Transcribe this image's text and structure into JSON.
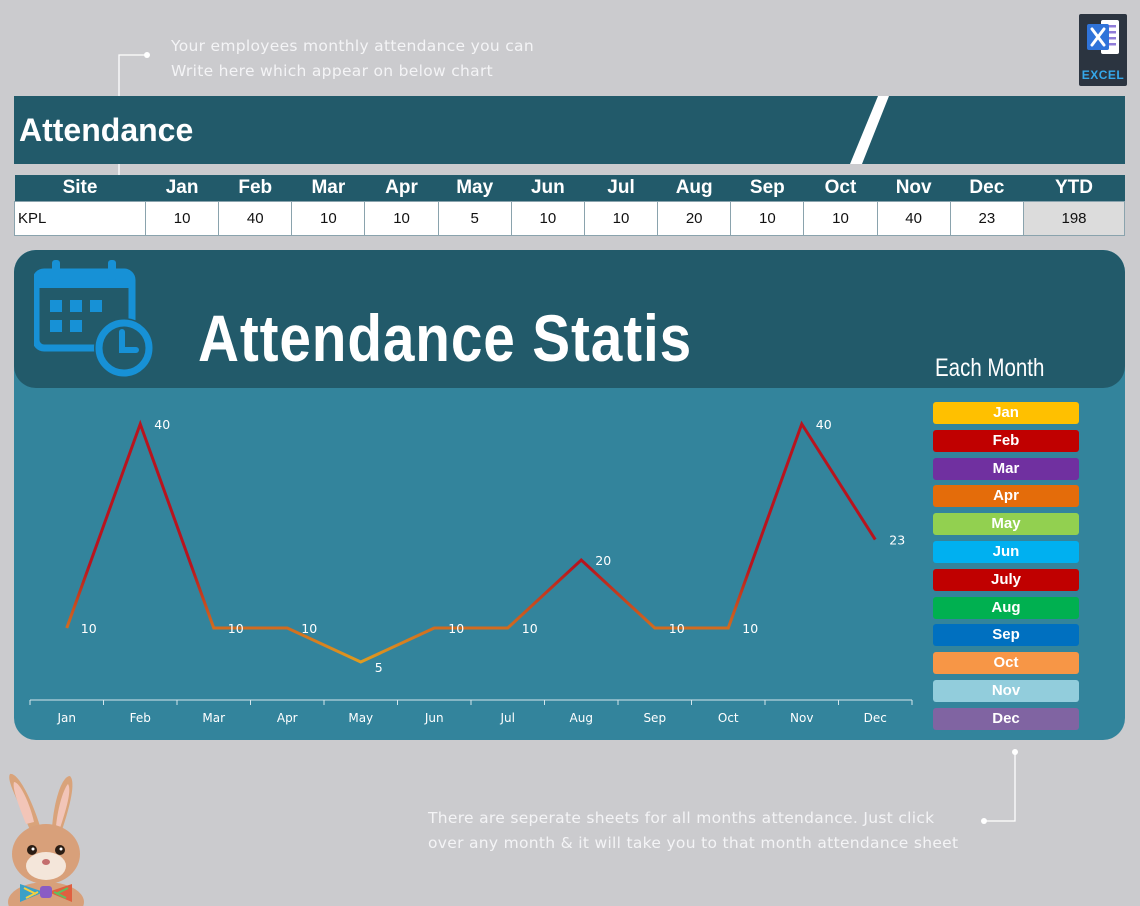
{
  "callouts": {
    "top_line1": "Your employees monthly attendance you can",
    "top_line2": "Write here which appear on below chart",
    "bottom_line1": "There are seperate sheets for all months attendance. Just click",
    "bottom_line2": "over any month & it will take you to that month attendance sheet"
  },
  "badge": {
    "label": "EXCEL",
    "icon": "excel-icon"
  },
  "header": {
    "title": "Attendance"
  },
  "table": {
    "columns": [
      "Site",
      "Jan",
      "Feb",
      "Mar",
      "Apr",
      "May",
      "Jun",
      "Jul",
      "Aug",
      "Sep",
      "Oct",
      "Nov",
      "Dec",
      "YTD"
    ],
    "row": {
      "site": "KPL",
      "values": [
        "10",
        "40",
        "10",
        "10",
        "5",
        "10",
        "10",
        "20",
        "10",
        "10",
        "40",
        "23"
      ],
      "ytd": "198"
    }
  },
  "stats": {
    "title": "Attendance Statis",
    "icon": "calendar-clock-icon",
    "each_month_label": "Each Month"
  },
  "chart_data": {
    "type": "line",
    "categories": [
      "Jan",
      "Feb",
      "Mar",
      "Apr",
      "May",
      "Jun",
      "Jul",
      "Aug",
      "Sep",
      "Oct",
      "Nov",
      "Dec"
    ],
    "values": [
      10,
      40,
      10,
      10,
      5,
      10,
      10,
      20,
      10,
      10,
      40,
      23
    ],
    "ylim": [
      0,
      45
    ],
    "grid": false,
    "data_labels": true,
    "colors": {
      "low": "#e0a020",
      "high": "#b8141e"
    }
  },
  "month_buttons": [
    {
      "label": "Jan",
      "color": "#ffc000"
    },
    {
      "label": "Feb",
      "color": "#c00000"
    },
    {
      "label": "Mar",
      "color": "#7030a0"
    },
    {
      "label": "Apr",
      "color": "#e46c0a"
    },
    {
      "label": "May",
      "color": "#92d050"
    },
    {
      "label": "Jun",
      "color": "#00b0f0"
    },
    {
      "label": "July",
      "color": "#c00000"
    },
    {
      "label": "Aug",
      "color": "#00b050"
    },
    {
      "label": "Sep",
      "color": "#0070c0"
    },
    {
      "label": "Oct",
      "color": "#f79646"
    },
    {
      "label": "Nov",
      "color": "#92cddc"
    },
    {
      "label": "Dec",
      "color": "#8064a2"
    }
  ]
}
